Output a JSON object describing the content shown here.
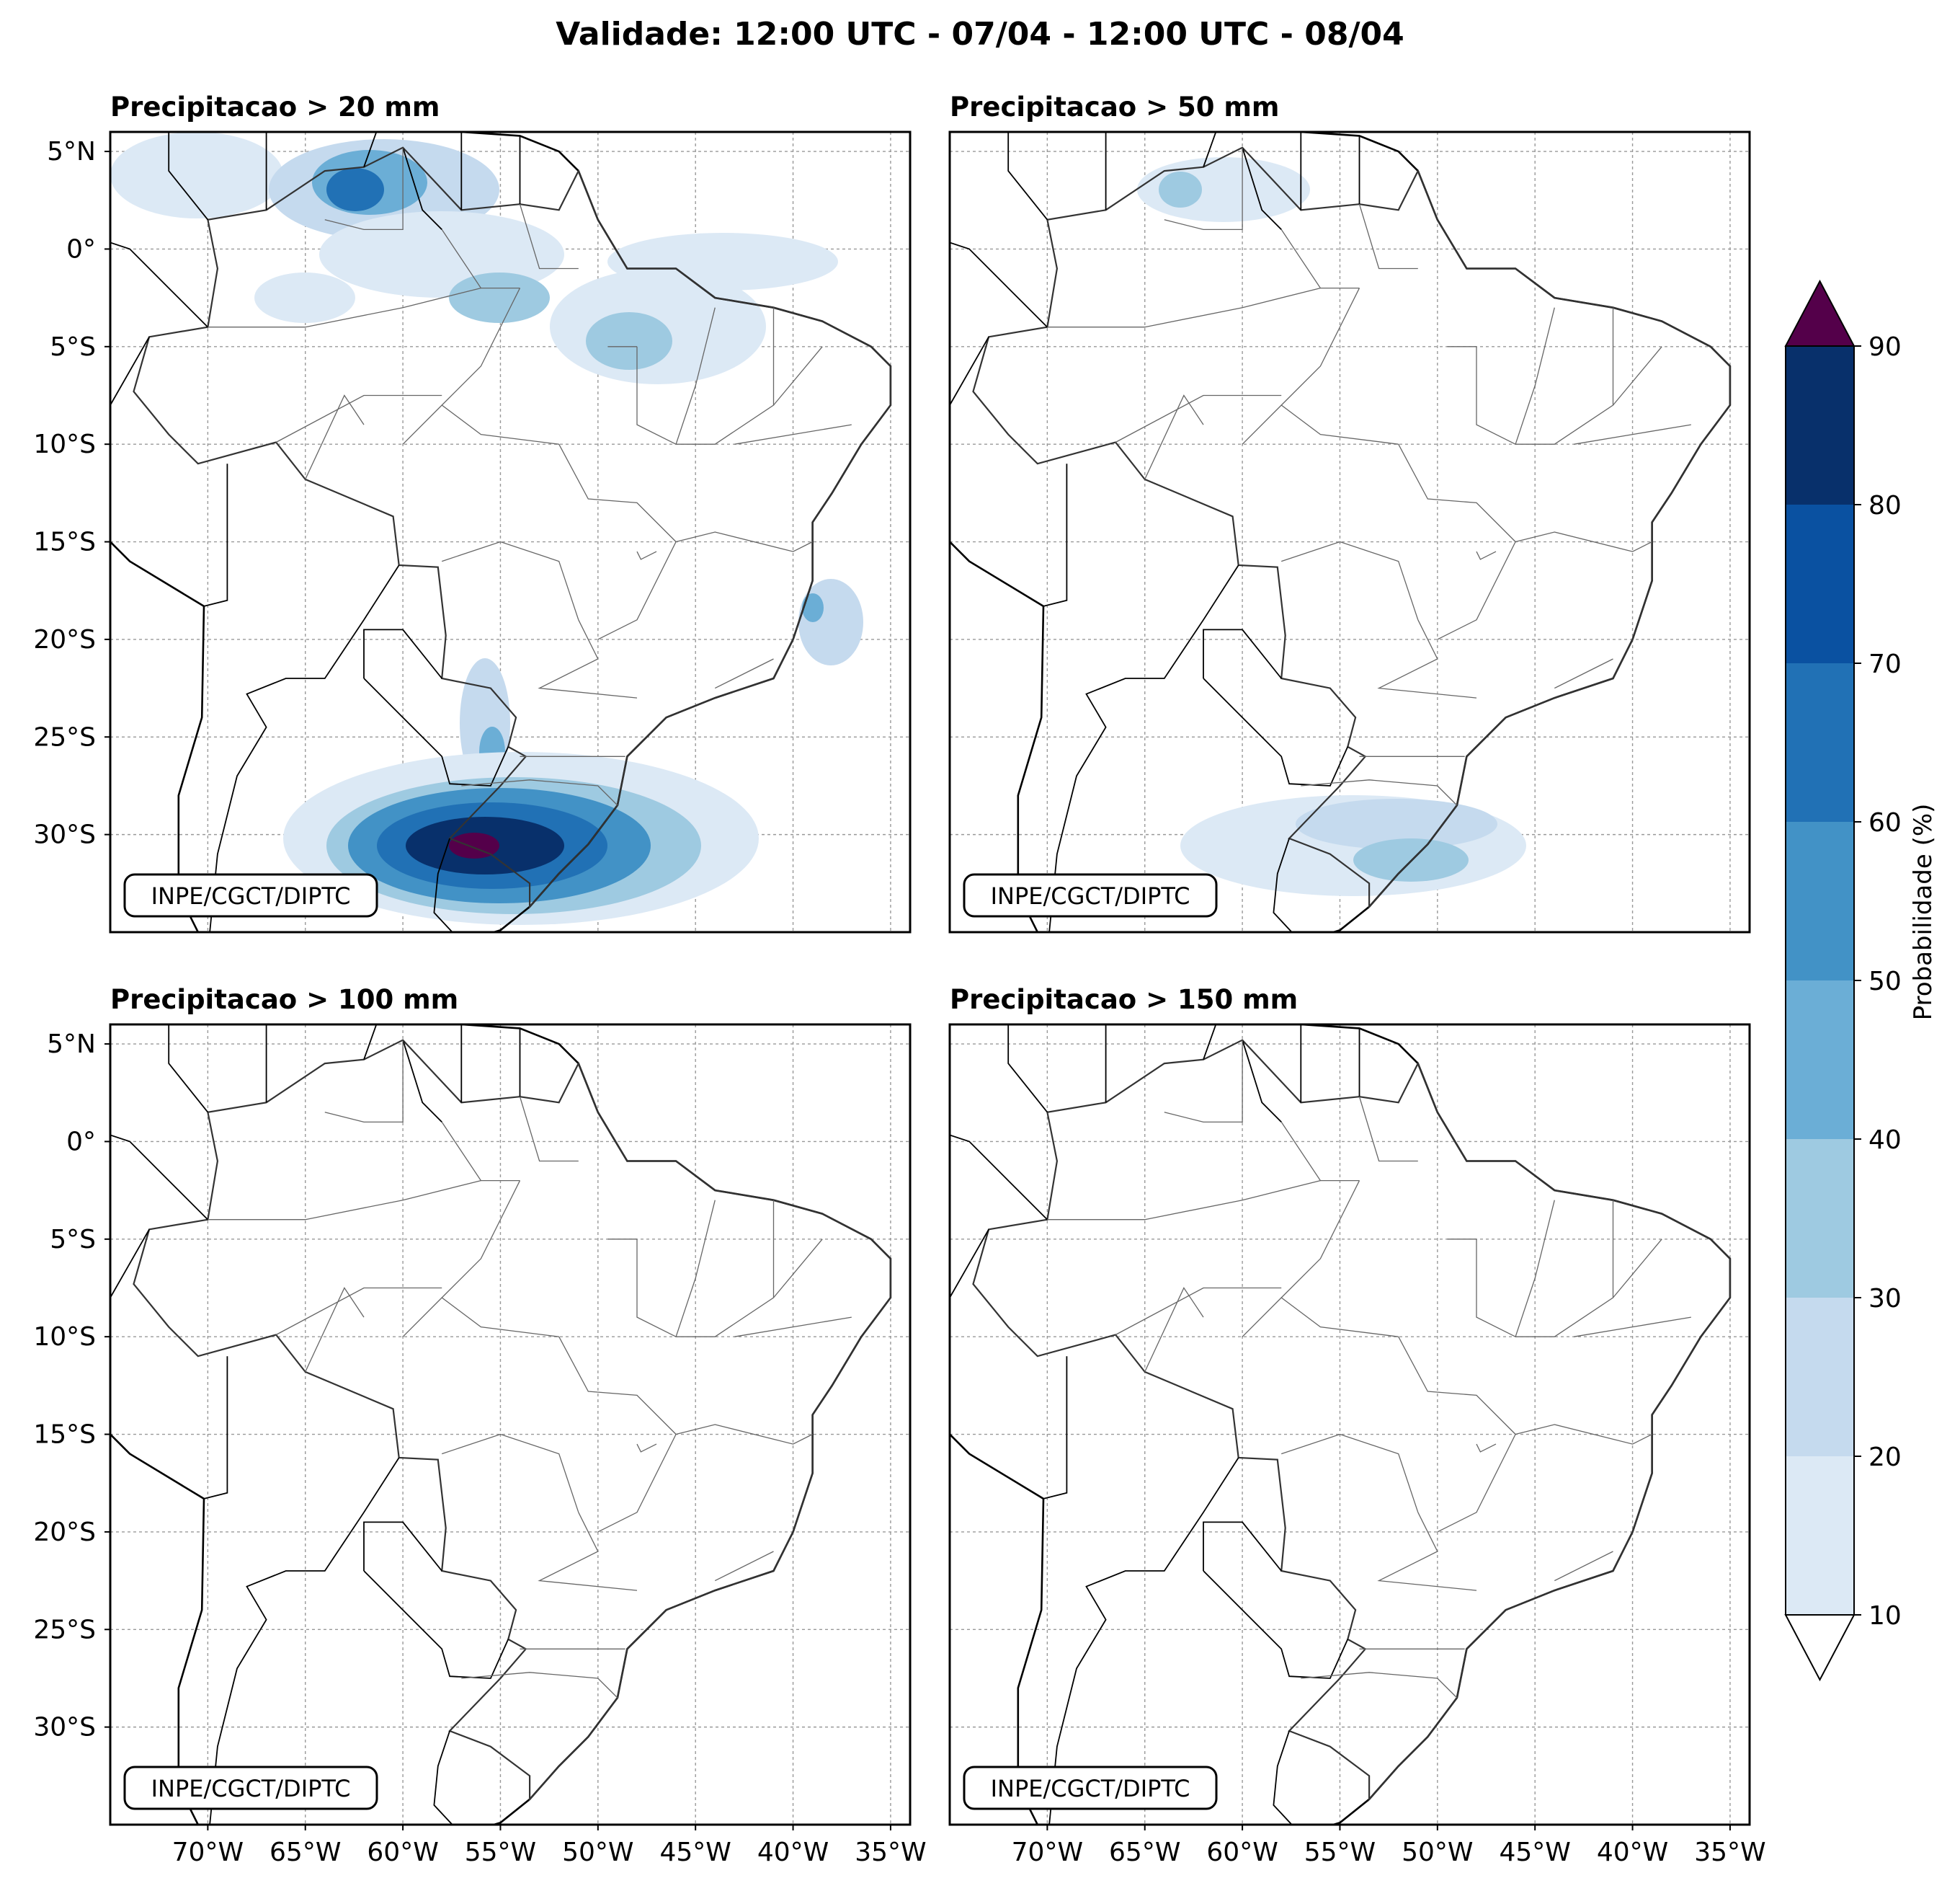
{
  "figure": {
    "title": "Validade: 12:00 UTC - 07/04 - 12:00 UTC - 08/04"
  },
  "panels": [
    {
      "title": "Precipitacao > 20 mm",
      "credit": "INPE/CGCT/DIPTC"
    },
    {
      "title": "Precipitacao > 50 mm",
      "credit": "INPE/CGCT/DIPTC"
    },
    {
      "title": "Precipitacao > 100 mm",
      "credit": "INPE/CGCT/DIPTC"
    },
    {
      "title": "Precipitacao > 150 mm",
      "credit": "INPE/CGCT/DIPTC"
    }
  ],
  "axes": {
    "lat_ticks": [
      "5°N",
      "0°",
      "5°S",
      "10°S",
      "15°S",
      "20°S",
      "25°S",
      "30°S"
    ],
    "lon_ticks": [
      "70°W",
      "65°W",
      "60°W",
      "55°W",
      "50°W",
      "45°W",
      "40°W",
      "35°W"
    ],
    "lat_range": [
      -35,
      6
    ],
    "lon_range": [
      -75,
      -34
    ]
  },
  "colorbar": {
    "label": "Probabilidade (%)",
    "ticks": [
      "10",
      "20",
      "30",
      "40",
      "50",
      "60",
      "70",
      "80",
      "90"
    ],
    "colors": [
      "#dce9f5",
      "#c5daee",
      "#9ecae1",
      "#6baed6",
      "#4292c6",
      "#2171b5",
      "#0a51a1",
      "#08306b"
    ],
    "over_color": "#54004a",
    "under_color": "#ffffff"
  }
}
